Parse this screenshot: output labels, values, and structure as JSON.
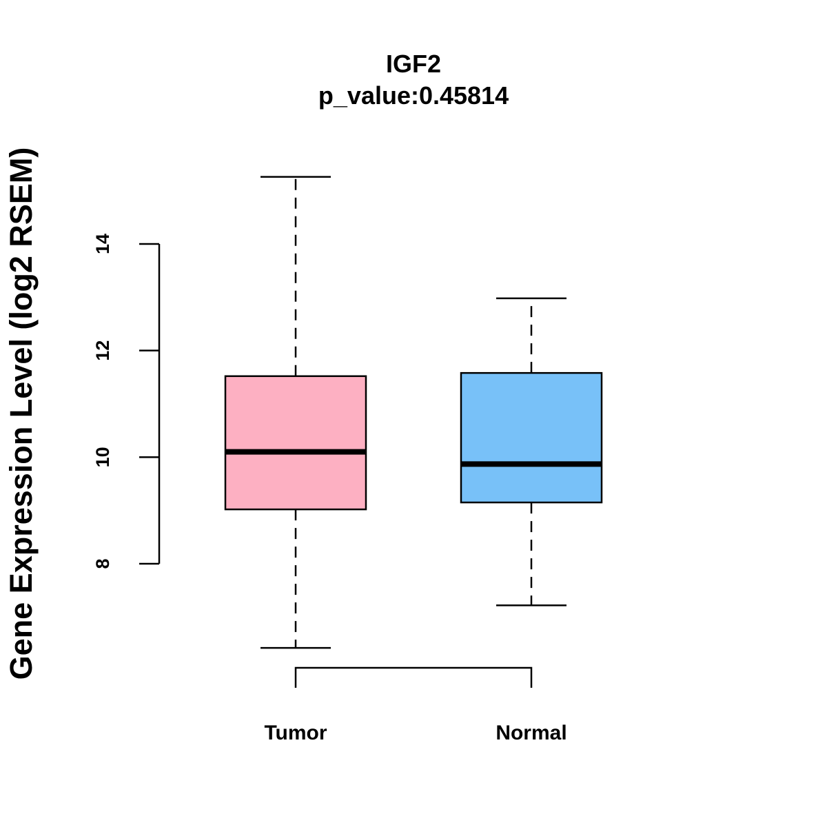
{
  "chart_data": {
    "type": "boxplot",
    "title": "IGF2",
    "subtitle": "p_value:0.45814",
    "xlabel": "",
    "ylabel": "Gene Expression Level (log2 RSEM)",
    "yticks": [
      8,
      10,
      12,
      14
    ],
    "ytick_labels": [
      "8",
      "10",
      "12",
      "14"
    ],
    "ylim": [
      6.4,
      15.3
    ],
    "categories": [
      "Tumor",
      "Normal"
    ],
    "boxes": [
      {
        "name": "Tumor",
        "whisker_low": 6.42,
        "q1": 9.02,
        "median": 10.1,
        "q3": 11.52,
        "whisker_high": 15.26,
        "color": "#FDB0C2"
      },
      {
        "name": "Normal",
        "whisker_low": 7.22,
        "q1": 9.15,
        "median": 9.87,
        "q3": 11.58,
        "whisker_high": 12.98,
        "color": "#78C1F8"
      }
    ],
    "comparison_bracket": [
      "Tumor",
      "Normal"
    ],
    "grid": false,
    "legend": "none"
  }
}
